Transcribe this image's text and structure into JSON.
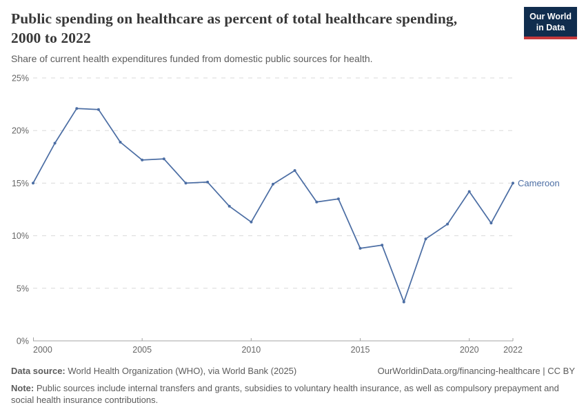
{
  "header": {
    "title": "Public spending on healthcare as percent of total healthcare spending, 2000 to 2022",
    "subtitle": "Share of current health expenditures funded from domestic public sources for health.",
    "logo_line1": "Our World",
    "logo_line2": "in Data"
  },
  "colors": {
    "line": "#4C6EA4",
    "grid": "#d9d9d9",
    "axis": "#a3a3a3",
    "axis_text": "#666666",
    "title_text": "#383838",
    "body_text": "#5b5b5b",
    "logo_bg": "#102d4e",
    "logo_red": "#c5383b"
  },
  "chart_data": {
    "type": "line",
    "title": "Public spending on healthcare as percent of total healthcare spending, 2000 to 2022",
    "xlabel": "",
    "ylabel": "",
    "x": [
      2000,
      2001,
      2002,
      2003,
      2004,
      2005,
      2006,
      2007,
      2008,
      2009,
      2010,
      2011,
      2012,
      2013,
      2014,
      2015,
      2016,
      2017,
      2018,
      2019,
      2020,
      2021,
      2022
    ],
    "series": [
      {
        "name": "Cameroon",
        "color": "#4C6EA4",
        "values": [
          15.0,
          18.8,
          22.1,
          22.0,
          18.9,
          17.2,
          17.3,
          15.0,
          15.1,
          12.8,
          11.3,
          14.9,
          16.2,
          13.2,
          13.5,
          8.8,
          9.1,
          3.7,
          9.7,
          11.1,
          14.2,
          11.2,
          15.0
        ]
      }
    ],
    "xlim": [
      2000,
      2022
    ],
    "ylim": [
      0,
      25
    ],
    "yticks": [
      0,
      5,
      10,
      15,
      20,
      25
    ],
    "ytick_suffix": "%",
    "xticks": [
      2000,
      2005,
      2010,
      2015,
      2020,
      2022
    ],
    "grid": "horizontal-dashed",
    "legend_position": "end-of-line-label"
  },
  "footer": {
    "data_source_label": "Data source:",
    "data_source_text": "World Health Organization (WHO), via World Bank (2025)",
    "link_text": "OurWorldinData.org/financing-healthcare | CC BY",
    "note_label": "Note:",
    "note_text": "Public sources include internal transfers and grants, subsidies to voluntary health insurance, as well as compulsory prepayment and social health insurance contributions."
  }
}
